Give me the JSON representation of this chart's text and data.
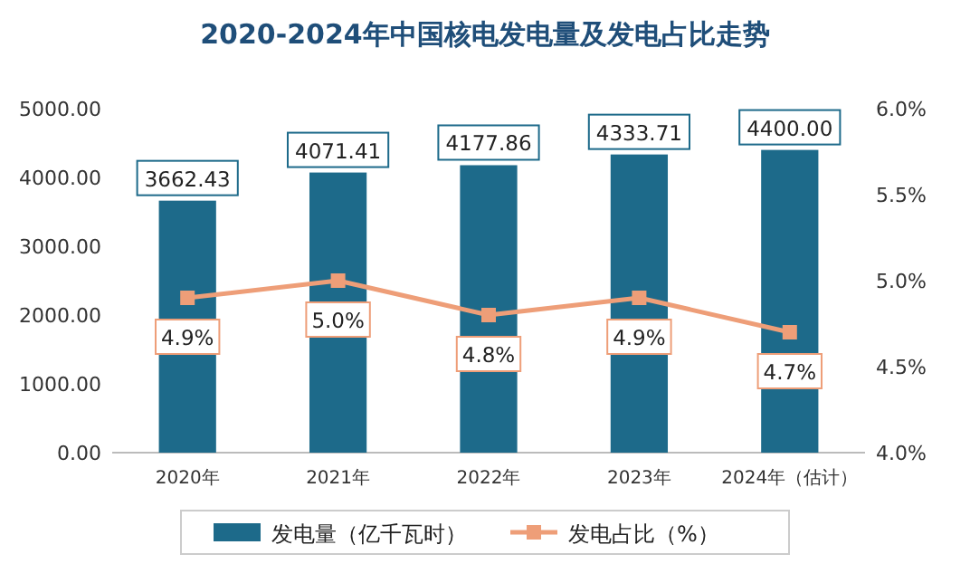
{
  "chart_data": {
    "type": "bar",
    "title": "2020-2024年中国核电发电量及发电占比走势",
    "categories": [
      "2020年",
      "2021年",
      "2022年",
      "2023年",
      "2024年（估计）"
    ],
    "series": [
      {
        "name": "发电量（亿千瓦时）",
        "color": "#1d6a8a",
        "values": [
          3662.43,
          4071.41,
          4177.86,
          4333.71,
          4400.0
        ],
        "value_labels": [
          "3662.43",
          "4071.41",
          "4177.86",
          "4333.71",
          "4400.00"
        ]
      },
      {
        "name": "发电占比（%）",
        "type": "line",
        "axis": "y2",
        "color": "#ee9e78",
        "marker": "square",
        "values": [
          4.9,
          5.0,
          4.8,
          4.9,
          4.7
        ],
        "value_labels": [
          "4.9%",
          "5.0%",
          "4.8%",
          "4.9%",
          "4.7%"
        ]
      }
    ],
    "ylim": [
      0,
      5000
    ],
    "yticks": [
      {
        "value": 0,
        "label": "0.00"
      },
      {
        "value": 1000,
        "label": "1000.00"
      },
      {
        "value": 2000,
        "label": "2000.00"
      },
      {
        "value": 3000,
        "label": "3000.00"
      },
      {
        "value": 4000,
        "label": "4000.00"
      },
      {
        "value": 5000,
        "label": "5000.00"
      }
    ],
    "y2lim": [
      4.0,
      6.0
    ],
    "y2ticks": [
      {
        "value": 4.0,
        "label": "4.0%"
      },
      {
        "value": 4.5,
        "label": "4.5%"
      },
      {
        "value": 5.0,
        "label": "5.0%"
      },
      {
        "value": 5.5,
        "label": "5.5%"
      },
      {
        "value": 6.0,
        "label": "6.0%"
      }
    ],
    "grid": false,
    "legend": "bottom"
  }
}
